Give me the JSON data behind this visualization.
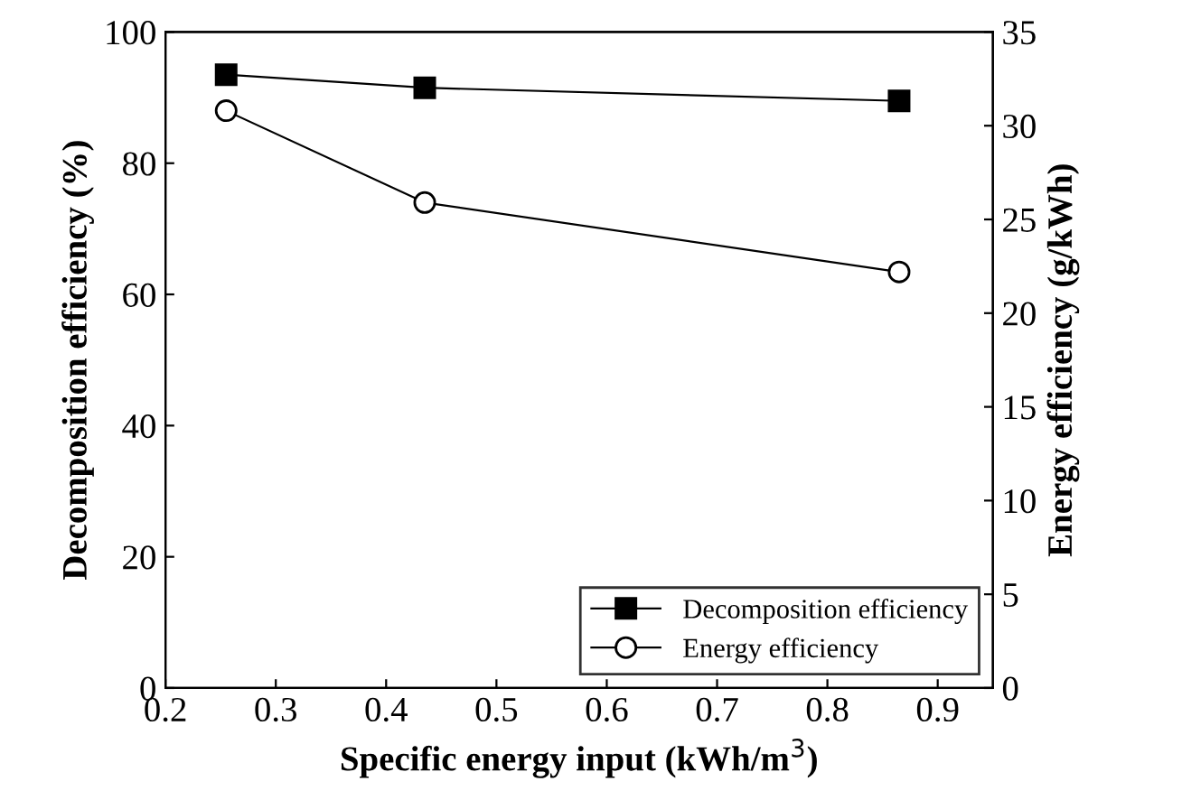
{
  "chart_data": {
    "type": "line",
    "xlabel": "Specific energy input (kWh/m$^{3}$)",
    "ylabel": "Decomposition efficiency (%)",
    "y2label": "Energy efficiency (g/kWh)",
    "x": [
      0.255,
      0.435,
      0.865
    ],
    "series": [
      {
        "name": "Decomposition efficiency",
        "color": "#000000",
        "marker": "square",
        "values": [
          93.5,
          91.5,
          89.5
        ]
      },
      {
        "name": "Energy efficiency",
        "color": "#000000",
        "marker": "circle",
        "axis": "y2",
        "values": [
          30.8,
          25.9,
          22.2
        ]
      }
    ],
    "xlim": [
      0.2,
      0.95
    ],
    "xticks": [
      0.2,
      0.3,
      0.4,
      0.5,
      0.6,
      0.7,
      0.8,
      0.9
    ],
    "ylim": [
      0,
      100
    ],
    "yticks": [
      0,
      20,
      40,
      60,
      80,
      100
    ],
    "y2lim": [
      0,
      35
    ],
    "y2ticks": [
      0,
      5,
      10,
      15,
      20,
      25,
      30,
      35
    ],
    "legend": "bottom right",
    "grid": false,
    "line_style": "solid"
  }
}
